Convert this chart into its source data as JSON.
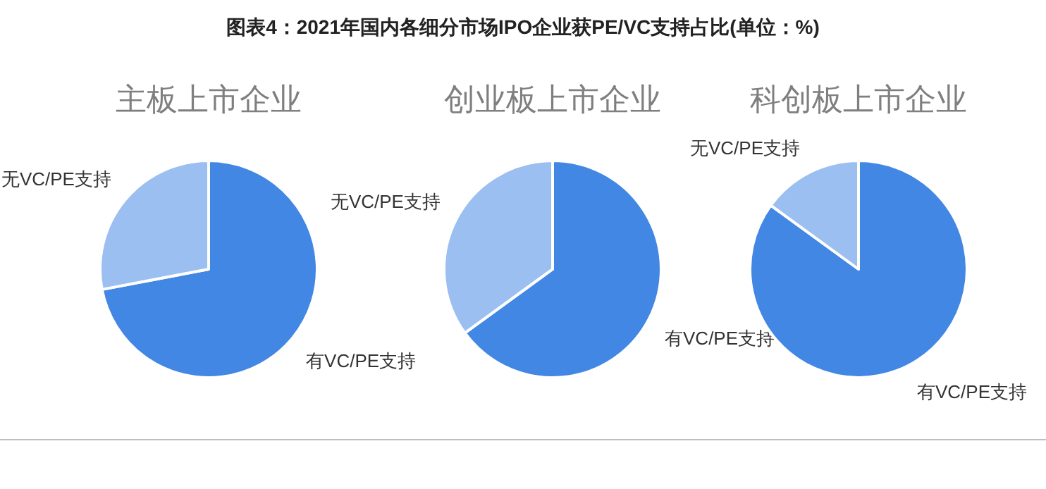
{
  "chart_data": [
    {
      "type": "pie",
      "title": "图表4：2021年国内各细分市场IPO企业获PE/VC支持占比(单位：%)",
      "subtitle": "主板上市企业",
      "categories": [
        "有VC/PE支持",
        "无VC/PE支持"
      ],
      "values": [
        72,
        28
      ],
      "colors": [
        "#4287e3",
        "#9bbff0"
      ]
    },
    {
      "type": "pie",
      "subtitle": "创业板上市企业",
      "categories": [
        "有VC/PE支持",
        "无VC/PE支持"
      ],
      "values": [
        65,
        35
      ],
      "colors": [
        "#4287e3",
        "#9bbff0"
      ]
    },
    {
      "type": "pie",
      "subtitle": "科创板上市企业",
      "categories": [
        "有VC/PE支持",
        "无VC/PE支持"
      ],
      "values": [
        85,
        15
      ],
      "colors": [
        "#4287e3",
        "#9bbff0"
      ]
    }
  ]
}
